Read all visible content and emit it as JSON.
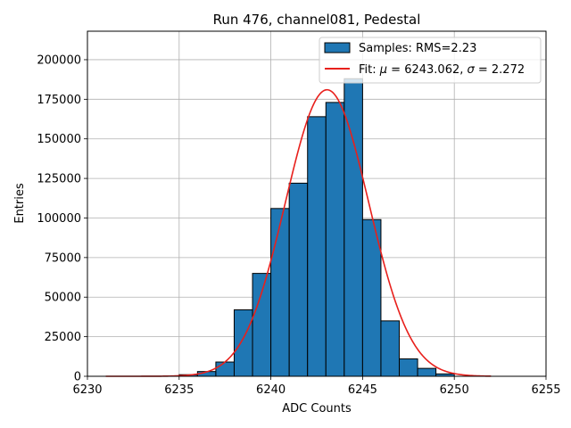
{
  "chart_data": {
    "type": "bar",
    "title": "Run 476, channel081, Pedestal",
    "xlabel": "ADC Counts",
    "ylabel": "Entries",
    "xlim": [
      6230,
      6255
    ],
    "ylim": [
      0,
      218000
    ],
    "xticks": [
      "6230",
      "6235",
      "6240",
      "6245",
      "6250",
      "6255"
    ],
    "yticks": [
      "0",
      "25000",
      "50000",
      "75000",
      "100000",
      "125000",
      "150000",
      "175000",
      "200000"
    ],
    "grid": true,
    "legend_position": "top-right",
    "bar_color": "#1f77b4",
    "fit_color": "#e8201c",
    "bins": [
      {
        "x0": 6235,
        "x1": 6236,
        "value": 1000
      },
      {
        "x0": 6236,
        "x1": 6237,
        "value": 3000
      },
      {
        "x0": 6237,
        "x1": 6238,
        "value": 9000
      },
      {
        "x0": 6238,
        "x1": 6239,
        "value": 42000
      },
      {
        "x0": 6239,
        "x1": 6240,
        "value": 65000
      },
      {
        "x0": 6240,
        "x1": 6241,
        "value": 106000
      },
      {
        "x0": 6241,
        "x1": 6242,
        "value": 122000
      },
      {
        "x0": 6242,
        "x1": 6243,
        "value": 164000
      },
      {
        "x0": 6243,
        "x1": 6244,
        "value": 173000
      },
      {
        "x0": 6244,
        "x1": 6245,
        "value": 188000
      },
      {
        "x0": 6245,
        "x1": 6246,
        "value": 99000
      },
      {
        "x0": 6246,
        "x1": 6247,
        "value": 35000
      },
      {
        "x0": 6247,
        "x1": 6248,
        "value": 11000
      },
      {
        "x0": 6248,
        "x1": 6249,
        "value": 5000
      },
      {
        "x0": 6249,
        "x1": 6250,
        "value": 1500
      }
    ],
    "fit": {
      "mu": 6243.062,
      "sigma": 2.272,
      "amplitude": 181000,
      "x_range": [
        6231,
        6252
      ]
    },
    "legend": {
      "samples_label": "Samples: RMS=2.23",
      "fit_label_prefix": "Fit: ",
      "fit_mu_symbol": "μ",
      "fit_mu_text": " = 6243.062, ",
      "fit_sigma_symbol": "σ",
      "fit_sigma_text": " = 2.272"
    }
  }
}
